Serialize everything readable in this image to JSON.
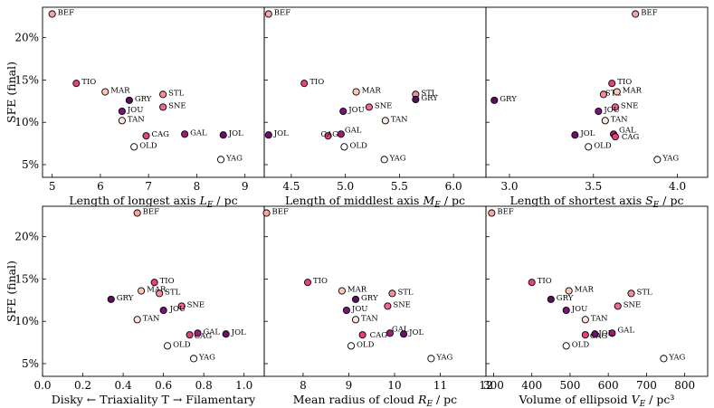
{
  "colors": {
    "BEF": "#f9a3a3",
    "TIO": "#e0447a",
    "MAR": "#fbc9b0",
    "GRY": "#5a0f5a",
    "STL": "#f48f9a",
    "JOU": "#7a137a",
    "SNE": "#ee6a8e",
    "TAN": "#fde5dc",
    "CAG": "#e3417a",
    "GAL": "#a51a78",
    "JOL": "#6e0f6e",
    "OLD": "#ffffff",
    "YAG": "#ffffff"
  },
  "chart_data": [
    {
      "id": "axis-length-longest",
      "type": "scatter",
      "xlabel": "Length of longest axis L_E / pc",
      "xlim": [
        4.8,
        9.4
      ],
      "xticks": [
        5,
        6,
        7,
        8,
        9
      ],
      "xtick_labels": [
        "5",
        "6",
        "7",
        "8",
        "9"
      ],
      "ylabel": "SFE (final)",
      "ylim": [
        3.5,
        23.6
      ],
      "yticks": [
        5,
        10,
        15,
        20
      ],
      "ytick_labels": [
        "5%",
        "10%",
        "15%",
        "20%"
      ],
      "points": [
        {
          "label": "BEF",
          "x": 5.0,
          "y": 22.8
        },
        {
          "label": "TIO",
          "x": 5.5,
          "y": 14.6
        },
        {
          "label": "MAR",
          "x": 6.1,
          "y": 13.6
        },
        {
          "label": "GRY",
          "x": 6.6,
          "y": 12.6
        },
        {
          "label": "STL",
          "x": 7.3,
          "y": 13.3
        },
        {
          "label": "JOU",
          "x": 6.45,
          "y": 11.3
        },
        {
          "label": "SNE",
          "x": 7.3,
          "y": 11.8
        },
        {
          "label": "TAN",
          "x": 6.45,
          "y": 10.2
        },
        {
          "label": "CAG",
          "x": 6.95,
          "y": 8.4
        },
        {
          "label": "GAL",
          "x": 7.75,
          "y": 8.6
        },
        {
          "label": "JOL",
          "x": 8.55,
          "y": 8.5
        },
        {
          "label": "OLD",
          "x": 6.7,
          "y": 7.1
        },
        {
          "label": "YAG",
          "x": 8.5,
          "y": 5.6
        }
      ]
    },
    {
      "id": "axis-length-middlest",
      "type": "scatter",
      "xlabel": "Length of middlest axis M_E / pc",
      "xlim": [
        4.25,
        6.3
      ],
      "xticks": [
        4.5,
        5.0,
        5.5,
        6.0
      ],
      "xtick_labels": [
        "4.5",
        "5.0",
        "5.5",
        "6.0"
      ],
      "ylim": [
        3.5,
        23.6
      ],
      "yticks": [
        5,
        10,
        15,
        20
      ],
      "points": [
        {
          "label": "BEF",
          "x": 4.29,
          "y": 22.8
        },
        {
          "label": "TIO",
          "x": 4.62,
          "y": 14.6
        },
        {
          "label": "MAR",
          "x": 5.1,
          "y": 13.6
        },
        {
          "label": "STL",
          "x": 5.65,
          "y": 13.3
        },
        {
          "label": "GRY",
          "x": 5.65,
          "y": 12.7
        },
        {
          "label": "SNE",
          "x": 5.22,
          "y": 11.8
        },
        {
          "label": "JOU",
          "x": 4.98,
          "y": 11.3
        },
        {
          "label": "TAN",
          "x": 5.37,
          "y": 10.2
        },
        {
          "label": "JOL",
          "x": 4.29,
          "y": 8.5
        },
        {
          "label": "CAG",
          "x": 4.84,
          "y": 8.4
        },
        {
          "label": "GAL",
          "x": 4.96,
          "y": 8.6
        },
        {
          "label": "OLD",
          "x": 4.99,
          "y": 7.1
        },
        {
          "label": "YAG",
          "x": 5.36,
          "y": 5.6
        }
      ]
    },
    {
      "id": "axis-length-shortest",
      "type": "scatter",
      "xlabel": "Length of shortest axis S_E / pc",
      "xlim": [
        2.86,
        4.18
      ],
      "xticks": [
        3.0,
        3.5,
        4.0
      ],
      "xtick_labels": [
        "3.0",
        "3.5",
        "4.0"
      ],
      "ylim": [
        3.5,
        23.6
      ],
      "yticks": [
        5,
        10,
        15,
        20
      ],
      "points": [
        {
          "label": "BEF",
          "x": 3.75,
          "y": 22.8
        },
        {
          "label": "GRY",
          "x": 2.91,
          "y": 12.6
        },
        {
          "label": "TIO",
          "x": 3.61,
          "y": 14.6
        },
        {
          "label": "STL",
          "x": 3.56,
          "y": 13.3
        },
        {
          "label": "MAR",
          "x": 3.64,
          "y": 13.6
        },
        {
          "label": "SNE",
          "x": 3.63,
          "y": 11.8
        },
        {
          "label": "JOU",
          "x": 3.53,
          "y": 11.3
        },
        {
          "label": "TAN",
          "x": 3.57,
          "y": 10.2
        },
        {
          "label": "JOL",
          "x": 3.39,
          "y": 8.5
        },
        {
          "label": "GAL",
          "x": 3.62,
          "y": 8.6
        },
        {
          "label": "CAG",
          "x": 3.63,
          "y": 8.3
        },
        {
          "label": "OLD",
          "x": 3.47,
          "y": 7.1
        },
        {
          "label": "YAG",
          "x": 3.88,
          "y": 5.6
        }
      ]
    },
    {
      "id": "axis-triaxiality",
      "type": "scatter",
      "xlabel": "Disky ← Triaxiality T → Filamentary",
      "xlim": [
        0.0,
        1.1
      ],
      "xticks": [
        0.0,
        0.2,
        0.4,
        0.6,
        0.8,
        1.0
      ],
      "xtick_labels": [
        "0.0",
        "0.2",
        "0.4",
        "0.6",
        "0.8",
        "1.0"
      ],
      "ylabel": "SFE (final)",
      "ylim": [
        3.5,
        23.6
      ],
      "yticks": [
        5,
        10,
        15,
        20
      ],
      "ytick_labels": [
        "5%",
        "10%",
        "15%",
        "20%"
      ],
      "points": [
        {
          "label": "BEF",
          "x": 0.47,
          "y": 22.8
        },
        {
          "label": "TIO",
          "x": 0.555,
          "y": 14.6
        },
        {
          "label": "MAR",
          "x": 0.49,
          "y": 13.6
        },
        {
          "label": "STL",
          "x": 0.58,
          "y": 13.3
        },
        {
          "label": "GRY",
          "x": 0.34,
          "y": 12.6
        },
        {
          "label": "SNE",
          "x": 0.69,
          "y": 11.8
        },
        {
          "label": "JOU",
          "x": 0.6,
          "y": 11.3
        },
        {
          "label": "TAN",
          "x": 0.47,
          "y": 10.2
        },
        {
          "label": "CAG",
          "x": 0.73,
          "y": 8.4
        },
        {
          "label": "GAL",
          "x": 0.77,
          "y": 8.6
        },
        {
          "label": "JOL",
          "x": 0.91,
          "y": 8.5
        },
        {
          "label": "OLD",
          "x": 0.62,
          "y": 7.1
        },
        {
          "label": "YAG",
          "x": 0.75,
          "y": 5.6
        }
      ]
    },
    {
      "id": "axis-mean-radius",
      "type": "scatter",
      "xlabel": "Mean radius of cloud R_E / pc",
      "xlim": [
        7.15,
        12.0
      ],
      "xticks": [
        8,
        9,
        10,
        11,
        12
      ],
      "xtick_labels": [
        "8",
        "9",
        "10",
        "11",
        "12"
      ],
      "ylim": [
        3.5,
        23.6
      ],
      "yticks": [
        5,
        10,
        15,
        20
      ],
      "points": [
        {
          "label": "BEF",
          "x": 7.2,
          "y": 22.8
        },
        {
          "label": "TIO",
          "x": 8.1,
          "y": 14.6
        },
        {
          "label": "MAR",
          "x": 8.85,
          "y": 13.6
        },
        {
          "label": "STL",
          "x": 9.95,
          "y": 13.3
        },
        {
          "label": "GRY",
          "x": 9.15,
          "y": 12.6
        },
        {
          "label": "SNE",
          "x": 9.85,
          "y": 11.8
        },
        {
          "label": "JOU",
          "x": 8.95,
          "y": 11.3
        },
        {
          "label": "TAN",
          "x": 9.15,
          "y": 10.2
        },
        {
          "label": "CAG",
          "x": 9.3,
          "y": 8.4
        },
        {
          "label": "GAL",
          "x": 9.9,
          "y": 8.6
        },
        {
          "label": "JOL",
          "x": 10.2,
          "y": 8.5
        },
        {
          "label": "OLD",
          "x": 9.05,
          "y": 7.1
        },
        {
          "label": "YAG",
          "x": 10.8,
          "y": 5.6
        }
      ]
    },
    {
      "id": "axis-volume-ellipsoid",
      "type": "scatter",
      "xlabel": "Volume of ellipsoid V_E / pc³",
      "xlim": [
        280,
        860
      ],
      "xticks": [
        300,
        400,
        500,
        600,
        700,
        800
      ],
      "xtick_labels": [
        "300",
        "400",
        "500",
        "600",
        "700",
        "800"
      ],
      "ylim": [
        3.5,
        23.6
      ],
      "yticks": [
        5,
        10,
        15,
        20
      ],
      "points": [
        {
          "label": "BEF",
          "x": 295,
          "y": 22.8
        },
        {
          "label": "TIO",
          "x": 400,
          "y": 14.6
        },
        {
          "label": "MAR",
          "x": 497,
          "y": 13.6
        },
        {
          "label": "STL",
          "x": 660,
          "y": 13.3
        },
        {
          "label": "GRY",
          "x": 450,
          "y": 12.6
        },
        {
          "label": "SNE",
          "x": 625,
          "y": 11.8
        },
        {
          "label": "JOU",
          "x": 490,
          "y": 11.3
        },
        {
          "label": "TAN",
          "x": 540,
          "y": 10.2
        },
        {
          "label": "CAG",
          "x": 540,
          "y": 8.4
        },
        {
          "label": "GAL",
          "x": 610,
          "y": 8.6
        },
        {
          "label": "JOL",
          "x": 565,
          "y": 8.5
        },
        {
          "label": "OLD",
          "x": 490,
          "y": 7.1
        },
        {
          "label": "YAG",
          "x": 745,
          "y": 5.6
        }
      ]
    }
  ]
}
